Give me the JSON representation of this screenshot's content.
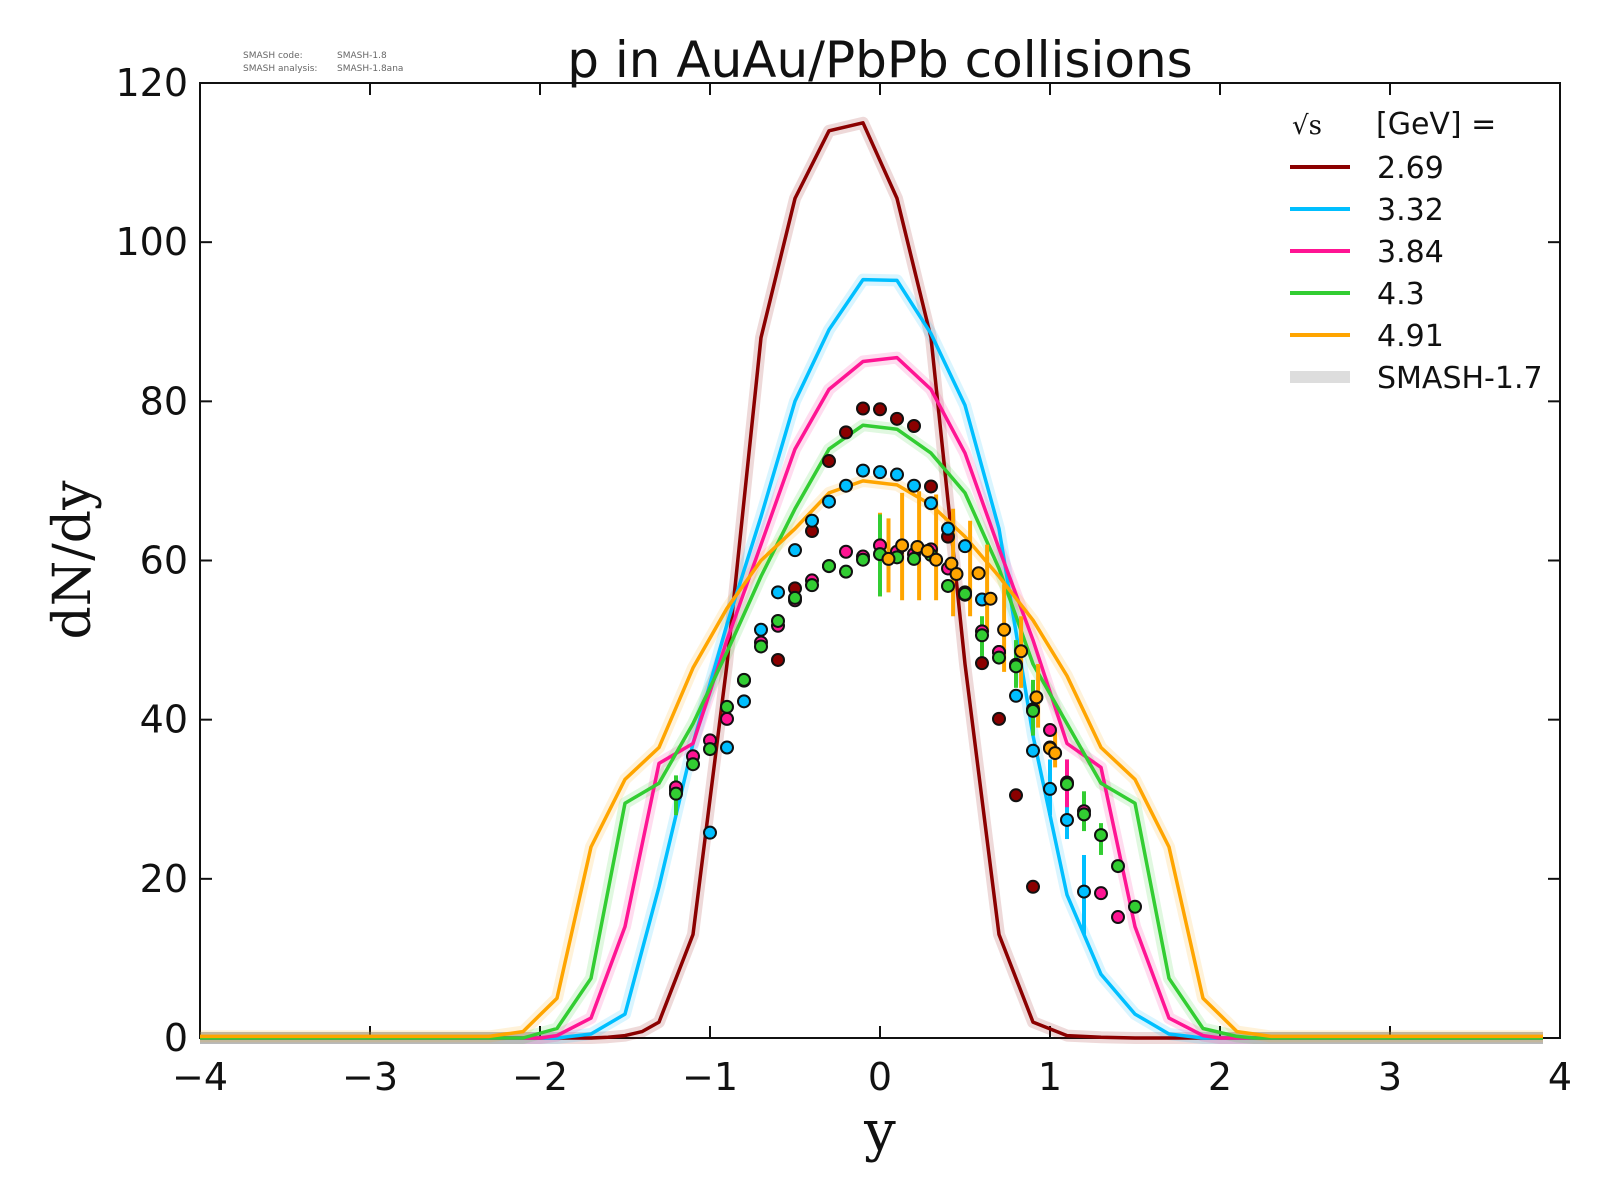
{
  "header": {
    "code_label": "SMASH code:",
    "code_value": "SMASH-1.8",
    "analysis_label": "SMASH analysis:",
    "analysis_value": "SMASH-1.8ana"
  },
  "chart_data": {
    "type": "line",
    "title": "p in AuAu/PbPb collisions",
    "xlabel": "y",
    "ylabel": "dN/dy",
    "xlim": [
      -4,
      4
    ],
    "ylim": [
      0,
      120
    ],
    "xticks": [
      "−4",
      "−3",
      "−2",
      "−1",
      "0",
      "1",
      "2",
      "3",
      "4"
    ],
    "xtick_values": [
      -4,
      -3,
      -2,
      -1,
      0,
      1,
      2,
      3,
      4
    ],
    "yticks": [
      "0",
      "20",
      "40",
      "60",
      "80",
      "100",
      "120"
    ],
    "ytick_values": [
      0,
      20,
      40,
      60,
      80,
      100,
      120
    ],
    "grid": false,
    "legend": {
      "placement": "top-right",
      "title_prefix": "√s",
      "title_suffix": "[GeV] ="
    },
    "band_series": {
      "name": "SMASH-1.7",
      "color": "#dddddd"
    },
    "series": [
      {
        "name": "2.69",
        "color": "#8b0000",
        "x": [
          -4.0,
          -3.9,
          -3.8,
          -3.7,
          -3.6,
          -3.5,
          -3.4,
          -3.3,
          -3.2,
          -3.1,
          -3.0,
          -2.9,
          -2.8,
          -2.7,
          -2.6,
          -2.5,
          -2.4,
          -2.3,
          -2.2,
          -2.1,
          -2.0,
          -1.9,
          -1.8,
          -1.7,
          -1.6,
          -1.5,
          -1.4,
          -1.3,
          -1.1,
          -0.9,
          -0.7,
          -0.5,
          -0.3,
          -0.1,
          0.1,
          0.3,
          0.5,
          0.7,
          0.9,
          1.1,
          1.3,
          1.5,
          1.7,
          1.9,
          2.0,
          2.1,
          2.2,
          2.3,
          2.4,
          2.5,
          2.6,
          2.7,
          2.8,
          2.9,
          3.0,
          3.1,
          3.2,
          3.3,
          3.4,
          3.5,
          3.6,
          3.7,
          3.8,
          3.9
        ],
        "y": [
          0,
          0,
          0,
          0,
          0,
          0,
          0,
          0,
          0,
          0,
          0,
          0,
          0,
          0,
          0,
          0,
          0,
          0,
          0,
          0,
          0,
          0,
          0,
          0,
          0.1,
          0.3,
          0.8,
          2,
          13,
          47,
          88,
          105.5,
          114,
          115,
          105.5,
          88,
          47,
          13,
          2,
          0.3,
          0.1,
          0,
          0,
          0,
          0,
          0,
          0,
          0,
          0,
          0,
          0,
          0,
          0,
          0,
          0,
          0,
          0,
          0,
          0,
          0,
          0,
          0,
          0,
          0
        ],
        "points": [
          [
            -0.6,
            47.5
          ],
          [
            -0.5,
            56.5
          ],
          [
            -0.4,
            63.7
          ],
          [
            -0.3,
            72.5
          ],
          [
            -0.2,
            76.1
          ],
          [
            -0.1,
            79.1
          ],
          [
            0.0,
            79.0
          ],
          [
            0.1,
            77.8
          ],
          [
            0.2,
            76.9
          ],
          [
            0.3,
            69.3
          ],
          [
            0.4,
            63.0
          ],
          [
            0.5,
            55.7
          ],
          [
            0.6,
            47.1
          ],
          [
            0.7,
            40.1
          ],
          [
            0.8,
            30.5
          ],
          [
            0.9,
            19.0
          ]
        ]
      },
      {
        "name": "3.32",
        "color": "#00bfff",
        "x": [
          -4.0,
          -3.8,
          -3.6,
          -3.4,
          -3.2,
          -3.0,
          -2.8,
          -2.6,
          -2.4,
          -2.2,
          -2.0,
          -1.9,
          -1.7,
          -1.5,
          -1.3,
          -1.1,
          -0.9,
          -0.7,
          -0.5,
          -0.3,
          -0.1,
          0.1,
          0.3,
          0.5,
          0.7,
          0.9,
          1.1,
          1.3,
          1.5,
          1.7,
          1.9,
          2.0,
          2.2,
          2.4,
          2.6,
          2.8,
          3.0,
          3.2,
          3.4,
          3.6,
          3.8,
          3.9
        ],
        "y": [
          0,
          0,
          0,
          0,
          0,
          0,
          0,
          0,
          0,
          0,
          0,
          0,
          0.5,
          3,
          19,
          37,
          52,
          65.5,
          80,
          89,
          95.3,
          95.2,
          88.5,
          79.5,
          64,
          38,
          18,
          8,
          3,
          0.5,
          0,
          0,
          0,
          0,
          0,
          0,
          0,
          0,
          0,
          0,
          0,
          0
        ],
        "points": [
          [
            -1.2,
            31.1
          ],
          [
            -1.0,
            25.8
          ],
          [
            -0.9,
            36.5
          ],
          [
            -0.8,
            42.3
          ],
          [
            -0.7,
            51.3
          ],
          [
            -0.6,
            56.0
          ],
          [
            -0.5,
            61.3
          ],
          [
            -0.4,
            65.0
          ],
          [
            -0.3,
            67.4
          ],
          [
            -0.2,
            69.4
          ],
          [
            -0.1,
            71.3
          ],
          [
            0.0,
            71.1
          ],
          [
            0.1,
            70.8
          ],
          [
            0.2,
            69.4
          ],
          [
            0.3,
            67.2
          ],
          [
            0.4,
            64.0
          ],
          [
            0.5,
            61.8
          ],
          [
            0.6,
            55.1
          ],
          [
            0.7,
            48.5
          ],
          [
            0.8,
            43.0
          ],
          [
            0.9,
            36.1
          ],
          [
            1.0,
            31.3
          ],
          [
            1.1,
            27.4
          ],
          [
            1.2,
            18.4
          ]
        ]
      },
      {
        "name": "3.84",
        "color": "#ff1493",
        "x": [
          -4.0,
          -3.8,
          -3.6,
          -3.4,
          -3.2,
          -3.0,
          -2.8,
          -2.6,
          -2.4,
          -2.2,
          -2.0,
          -1.9,
          -1.7,
          -1.5,
          -1.3,
          -1.1,
          -0.9,
          -0.7,
          -0.5,
          -0.3,
          -0.1,
          0.1,
          0.3,
          0.5,
          0.7,
          0.9,
          1.1,
          1.3,
          1.5,
          1.7,
          1.9,
          2.0,
          2.2,
          2.4,
          2.6,
          2.8,
          3.0,
          3.2,
          3.4,
          3.6,
          3.8,
          3.9
        ],
        "y": [
          0,
          0,
          0,
          0,
          0,
          0,
          0,
          0,
          0,
          0,
          0,
          0.3,
          2.5,
          14,
          34.5,
          37,
          50,
          62,
          74,
          81.5,
          85,
          85.5,
          81.5,
          73.5,
          61.5,
          50,
          37,
          34,
          14,
          2.5,
          0.3,
          0,
          0,
          0,
          0,
          0,
          0,
          0,
          0,
          0,
          0,
          0
        ],
        "points": [
          [
            -1.2,
            31.5
          ],
          [
            -1.1,
            35.4
          ],
          [
            -1.0,
            37.4
          ],
          [
            -0.9,
            40.1
          ],
          [
            -0.8,
            44.9
          ],
          [
            -0.7,
            49.7
          ],
          [
            -0.6,
            51.8
          ],
          [
            -0.5,
            55.0
          ],
          [
            -0.4,
            57.5
          ],
          [
            -0.3,
            59.3
          ],
          [
            -0.2,
            61.1
          ],
          [
            -0.1,
            60.5
          ],
          [
            0.0,
            61.9
          ],
          [
            0.1,
            61.1
          ],
          [
            0.2,
            60.8
          ],
          [
            0.3,
            61.4
          ],
          [
            0.4,
            59.0
          ],
          [
            0.5,
            56.0
          ],
          [
            0.6,
            51.1
          ],
          [
            0.7,
            48.5
          ],
          [
            0.8,
            46.9
          ],
          [
            0.9,
            41.3
          ],
          [
            1.0,
            38.7
          ],
          [
            1.1,
            32.1
          ],
          [
            1.2,
            28.5
          ],
          [
            1.3,
            18.2
          ],
          [
            1.4,
            15.2
          ]
        ]
      },
      {
        "name": "4.3",
        "color": "#32cd32",
        "x": [
          -4.0,
          -3.8,
          -3.6,
          -3.4,
          -3.2,
          -3.0,
          -2.8,
          -2.6,
          -2.4,
          -2.2,
          -2.1,
          -1.9,
          -1.7,
          -1.5,
          -1.3,
          -1.1,
          -0.9,
          -0.7,
          -0.5,
          -0.3,
          -0.1,
          0.1,
          0.3,
          0.5,
          0.7,
          0.9,
          1.1,
          1.3,
          1.5,
          1.7,
          1.9,
          2.1,
          2.2,
          2.4,
          2.6,
          2.8,
          3.0,
          3.2,
          3.4,
          3.6,
          3.8,
          3.9
        ],
        "y": [
          0,
          0,
          0,
          0,
          0,
          0,
          0,
          0,
          0,
          0,
          0,
          1.2,
          7.5,
          29.5,
          32,
          39.5,
          48.5,
          58,
          66.5,
          74,
          77,
          76.5,
          73.5,
          68.5,
          59,
          47,
          39.5,
          32,
          29.5,
          7.5,
          1.2,
          0.2,
          0,
          0,
          0,
          0,
          0,
          0,
          0,
          0,
          0,
          0
        ],
        "points": [
          [
            -1.2,
            30.7
          ],
          [
            -1.1,
            34.4
          ],
          [
            -1.0,
            36.3
          ],
          [
            -0.9,
            41.6
          ],
          [
            -0.8,
            45.0
          ],
          [
            -0.7,
            49.2
          ],
          [
            -0.6,
            52.4
          ],
          [
            -0.5,
            55.3
          ],
          [
            -0.4,
            56.9
          ],
          [
            -0.3,
            59.3
          ],
          [
            -0.2,
            58.6
          ],
          [
            -0.1,
            60.1
          ],
          [
            0.0,
            60.8
          ],
          [
            0.1,
            60.4
          ],
          [
            0.2,
            60.2
          ],
          [
            0.3,
            60.7
          ],
          [
            0.4,
            56.8
          ],
          [
            0.5,
            55.8
          ],
          [
            0.6,
            50.6
          ],
          [
            0.7,
            47.8
          ],
          [
            0.8,
            46.7
          ],
          [
            0.9,
            41.1
          ],
          [
            1.0,
            36.5
          ],
          [
            1.1,
            31.9
          ],
          [
            1.2,
            28.1
          ],
          [
            1.3,
            25.5
          ],
          [
            1.4,
            21.6
          ],
          [
            1.5,
            16.5
          ]
        ]
      },
      {
        "name": "4.91",
        "color": "#ffa500",
        "x": [
          -4.0,
          -3.8,
          -3.6,
          -3.4,
          -3.2,
          -3.0,
          -2.8,
          -2.6,
          -2.4,
          -2.3,
          -2.1,
          -1.9,
          -1.7,
          -1.5,
          -1.3,
          -1.1,
          -0.9,
          -0.7,
          -0.5,
          -0.3,
          -0.1,
          0.1,
          0.3,
          0.5,
          0.7,
          0.9,
          1.1,
          1.3,
          1.5,
          1.7,
          1.9,
          2.1,
          2.3,
          2.4,
          2.6,
          2.8,
          3.0,
          3.2,
          3.4,
          3.6,
          3.8,
          3.9
        ],
        "y": [
          0.2,
          0.2,
          0.2,
          0.2,
          0.2,
          0.2,
          0.2,
          0.2,
          0.2,
          0.2,
          0.8,
          5,
          24,
          32.5,
          36.5,
          46.5,
          54,
          60,
          64,
          68.5,
          70,
          69.5,
          67,
          63,
          58,
          52.5,
          45.5,
          36.5,
          32.5,
          24,
          5,
          0.8,
          0.2,
          0.2,
          0.2,
          0.2,
          0.2,
          0.2,
          0.2,
          0.2,
          0.2,
          0.2
        ],
        "points": [
          [
            0.05,
            60.2
          ],
          [
            0.13,
            61.9
          ],
          [
            0.22,
            61.7
          ],
          [
            0.28,
            61.2
          ],
          [
            0.33,
            60.1
          ],
          [
            0.42,
            59.6
          ],
          [
            0.45,
            58.3
          ],
          [
            0.58,
            58.4
          ],
          [
            0.65,
            55.2
          ],
          [
            0.73,
            51.3
          ],
          [
            0.83,
            48.6
          ],
          [
            0.92,
            42.8
          ],
          [
            1.0,
            36.4
          ],
          [
            1.03,
            35.8
          ]
        ],
        "errorbars": [
          [
            0.0,
            55.5,
            66
          ],
          [
            0.05,
            56,
            65.3
          ],
          [
            0.13,
            55,
            68.5
          ],
          [
            0.23,
            55,
            68.7
          ],
          [
            0.33,
            55,
            68.3
          ],
          [
            0.43,
            53,
            66.5
          ],
          [
            0.53,
            53,
            65
          ],
          [
            0.63,
            51,
            62
          ],
          [
            0.73,
            46,
            57
          ],
          [
            0.83,
            44,
            53
          ],
          [
            0.93,
            39,
            47
          ],
          [
            1.03,
            34,
            38.5
          ]
        ]
      }
    ],
    "extra_errorbars": [
      {
        "color": "#32cd32",
        "bars": [
          [
            -1.2,
            28,
            33
          ],
          [
            0.0,
            55.5,
            65.8
          ],
          [
            0.6,
            47,
            53
          ],
          [
            0.8,
            44,
            50
          ],
          [
            0.9,
            38,
            45
          ],
          [
            1.1,
            29,
            35
          ],
          [
            1.2,
            26,
            31
          ],
          [
            1.3,
            23,
            27
          ]
        ]
      },
      {
        "color": "#00bfff",
        "bars": [
          [
            1.0,
            28,
            35
          ],
          [
            1.1,
            25,
            31
          ],
          [
            1.2,
            13,
            23
          ]
        ]
      },
      {
        "color": "#ff1493",
        "bars": [
          [
            1.1,
            29,
            35
          ]
        ]
      }
    ]
  }
}
